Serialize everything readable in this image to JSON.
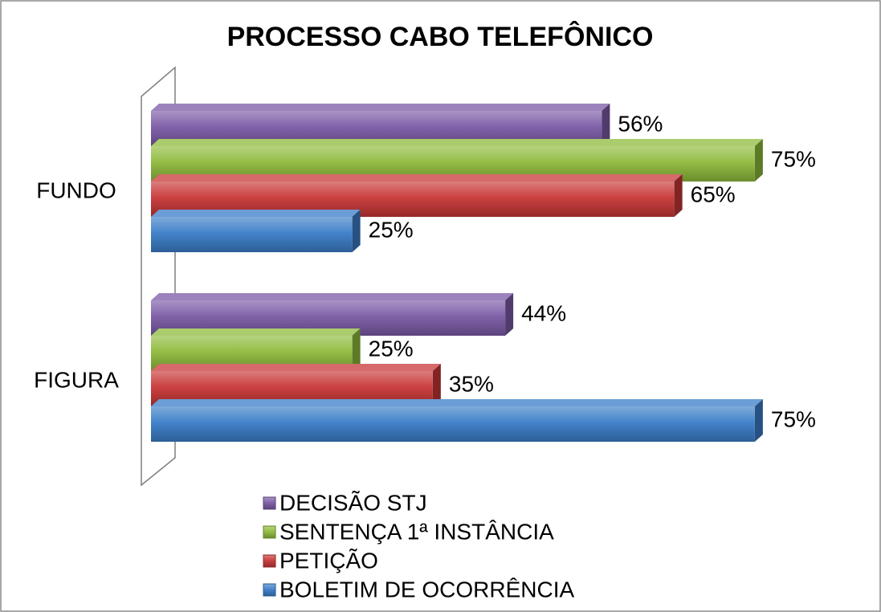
{
  "chart_data": {
    "type": "bar",
    "orientation": "horizontal",
    "title": "PROCESSO CABO TELEFÔNICO",
    "categories": [
      "FUNDO",
      "FIGURA"
    ],
    "series": [
      {
        "name": "DECISÃO STJ",
        "color": "#7b5aa6",
        "values": [
          56,
          44
        ],
        "value_labels": [
          "56%",
          "44%"
        ]
      },
      {
        "name": "SENTENÇA 1ª INSTÂNCIA",
        "color": "#8fbb3c",
        "values": [
          75,
          25
        ],
        "value_labels": [
          "75%",
          "25%"
        ]
      },
      {
        "name": "PETIÇÃO",
        "color": "#c83737",
        "values": [
          65,
          35
        ],
        "value_labels": [
          "65%",
          "35%"
        ]
      },
      {
        "name": "BOLETIM DE OCORRÊNCIA",
        "color": "#3a7dc8",
        "values": [
          25,
          75
        ],
        "value_labels": [
          "25%",
          "75%"
        ]
      }
    ],
    "xlim": [
      0,
      80
    ],
    "legend": "bottom"
  }
}
